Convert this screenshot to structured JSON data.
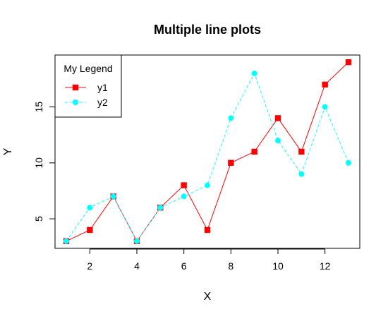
{
  "chart_data": {
    "type": "line",
    "title": "Multiple line plots",
    "xlabel": "X",
    "ylabel": "Y",
    "x": [
      1,
      2,
      3,
      4,
      5,
      6,
      7,
      8,
      9,
      10,
      11,
      12,
      13
    ],
    "xlim": [
      0.52,
      13.48
    ],
    "ylim": [
      2.36,
      19.64
    ],
    "xticks": [
      2,
      4,
      6,
      8,
      10,
      12
    ],
    "yticks": [
      5,
      10,
      15
    ],
    "grid": false,
    "legend": {
      "title": "My Legend",
      "position": "top-left"
    },
    "series": [
      {
        "name": "y1",
        "values": [
          3,
          4,
          7,
          3,
          6,
          8,
          4,
          10,
          11,
          14,
          11,
          17,
          19
        ],
        "color": "#ff0000",
        "marker": "square",
        "line_style": "solid"
      },
      {
        "name": "y2",
        "values": [
          3,
          6,
          7,
          3,
          6,
          7,
          8,
          14,
          18,
          12,
          9,
          15,
          10
        ],
        "color": "#00ffff",
        "marker": "circle",
        "line_style": "dashed"
      }
    ]
  }
}
